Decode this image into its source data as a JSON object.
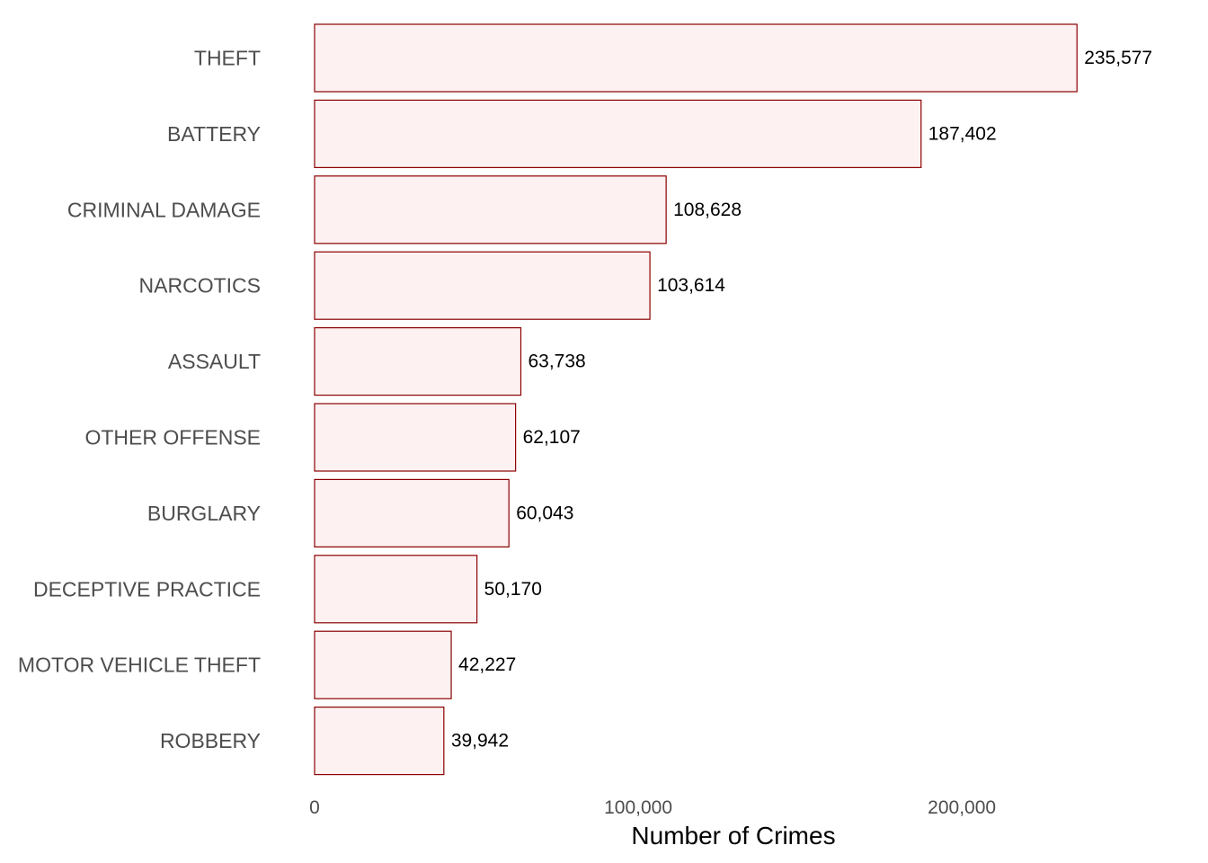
{
  "chart_data": {
    "type": "bar",
    "orientation": "horizontal",
    "categories": [
      "THEFT",
      "BATTERY",
      "CRIMINAL DAMAGE",
      "NARCOTICS",
      "ASSAULT",
      "OTHER OFFENSE",
      "BURGLARY",
      "DECEPTIVE PRACTICE",
      "MOTOR VEHICLE THEFT",
      "ROBBERY"
    ],
    "values": [
      235577,
      187402,
      108628,
      103614,
      63738,
      62107,
      60043,
      50170,
      42227,
      39942
    ],
    "value_labels": [
      "235,577",
      "187,402",
      "108,628",
      "103,614",
      "63,738",
      "62,107",
      "60,043",
      "50,170",
      "42,227",
      "39,942"
    ],
    "title": "",
    "xlabel": "Number of Crimes",
    "ylabel": "",
    "xlim": [
      0,
      257000
    ],
    "x_ticks": [
      0,
      100000,
      200000
    ],
    "x_tick_labels": [
      "0",
      "100,000",
      "200,000"
    ],
    "grid": false,
    "legend": "none",
    "colors": {
      "bar_fill": "#fdf1f1",
      "bar_stroke": "#8b0000"
    }
  }
}
